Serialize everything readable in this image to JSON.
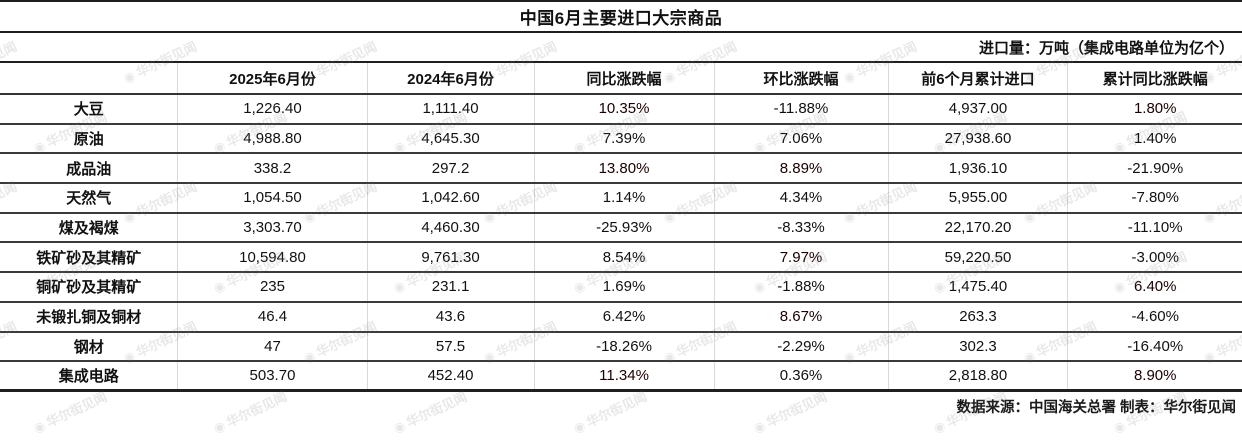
{
  "title": "中国6月主要进口大宗商品",
  "subtitle": "进口量：万吨（集成电路单位为亿个）",
  "footer": "数据来源：中国海关总署 制表：华尔街见闻",
  "watermark": "华尔街见闻",
  "colors": {
    "highlight_red": "#c60c11",
    "highlight_pink": "#f6ced3",
    "line_dark": "#1f1f1f"
  },
  "chart_data": {
    "type": "table",
    "title": "中国6月主要进口大宗商品",
    "unit_note": "进口量：万吨（集成电路单位为亿个）",
    "columns": [
      "",
      "2025年6月份",
      "2024年6月份",
      "同比涨跌幅",
      "环比涨跌幅",
      "前6个月累计进口",
      "累计同比涨跌幅"
    ],
    "rows": [
      [
        "大豆",
        "1,226.40",
        "1,111.40",
        "10.35%",
        "-11.88%",
        "4,937.00",
        "1.80%"
      ],
      [
        "原油",
        "4,988.80",
        "4,645.30",
        "7.39%",
        "7.06%",
        "27,938.60",
        "1.40%"
      ],
      [
        "成品油",
        "338.2",
        "297.2",
        "13.80%",
        "8.89%",
        "1,936.10",
        "-21.90%"
      ],
      [
        "天然气",
        "1,054.50",
        "1,042.60",
        "1.14%",
        "4.34%",
        "5,955.00",
        "-7.80%"
      ],
      [
        "煤及褐煤",
        "3,303.70",
        "4,460.30",
        "-25.93%",
        "-8.33%",
        "22,170.20",
        "-11.10%"
      ],
      [
        "铁矿砂及其精矿",
        "10,594.80",
        "9,761.30",
        "8.54%",
        "7.97%",
        "59,220.50",
        "-3.00%"
      ],
      [
        "铜矿砂及其精矿",
        "235",
        "231.1",
        "1.69%",
        "-1.88%",
        "1,475.40",
        "6.40%"
      ],
      [
        "未锻扎铜及铜材",
        "46.4",
        "43.6",
        "6.42%",
        "8.67%",
        "263.3",
        "-4.60%"
      ],
      [
        "钢材",
        "47",
        "57.5",
        "-18.26%",
        "-2.29%",
        "302.3",
        "-16.40%"
      ],
      [
        "集成电路",
        "503.70",
        "452.40",
        "11.34%",
        "0.36%",
        "2,818.80",
        "8.90%"
      ]
    ]
  },
  "table": {
    "columns": [
      "",
      "2025年6月份",
      "2024年6月份",
      "同比涨跌幅",
      "环比涨跌幅",
      "前6个月累计进口",
      "累计同比涨跌幅"
    ],
    "rows": [
      {
        "name": "大豆",
        "cells": [
          {
            "text": "1,226.40",
            "bg": "white"
          },
          {
            "text": "1,111.40",
            "bg": "white"
          },
          {
            "text": "10.35%",
            "bg": "red"
          },
          {
            "text": "-11.88%",
            "bg": "pink"
          },
          {
            "text": "4,937.00",
            "bg": "white"
          },
          {
            "text": "1.80%",
            "bg": "red"
          }
        ]
      },
      {
        "name": "原油",
        "cells": [
          {
            "text": "4,988.80",
            "bg": "white"
          },
          {
            "text": "4,645.30",
            "bg": "white"
          },
          {
            "text": "7.39%",
            "bg": "white"
          },
          {
            "text": "7.06%",
            "bg": "white"
          },
          {
            "text": "27,938.60",
            "bg": "white"
          },
          {
            "text": "1.40%",
            "bg": "white"
          }
        ]
      },
      {
        "name": "成品油",
        "cells": [
          {
            "text": "338.2",
            "bg": "white"
          },
          {
            "text": "297.2",
            "bg": "white"
          },
          {
            "text": "13.80%",
            "bg": "red"
          },
          {
            "text": "8.89%",
            "bg": "red"
          },
          {
            "text": "1,936.10",
            "bg": "white"
          },
          {
            "text": "-21.90%",
            "bg": "pink"
          }
        ]
      },
      {
        "name": "天然气",
        "cells": [
          {
            "text": "1,054.50",
            "bg": "white"
          },
          {
            "text": "1,042.60",
            "bg": "white"
          },
          {
            "text": "1.14%",
            "bg": "white"
          },
          {
            "text": "4.34%",
            "bg": "white"
          },
          {
            "text": "5,955.00",
            "bg": "white"
          },
          {
            "text": "-7.80%",
            "bg": "white"
          }
        ]
      },
      {
        "name": "煤及褐煤",
        "cells": [
          {
            "text": "3,303.70",
            "bg": "white"
          },
          {
            "text": "4,460.30",
            "bg": "white"
          },
          {
            "text": "-25.93%",
            "bg": "pink"
          },
          {
            "text": "-8.33%",
            "bg": "pink"
          },
          {
            "text": "22,170.20",
            "bg": "white"
          },
          {
            "text": "-11.10%",
            "bg": "pink"
          }
        ]
      },
      {
        "name": "铁矿砂及其精矿",
        "cells": [
          {
            "text": "10,594.80",
            "bg": "white"
          },
          {
            "text": "9,761.30",
            "bg": "white"
          },
          {
            "text": "8.54%",
            "bg": "white"
          },
          {
            "text": "7.97%",
            "bg": "red"
          },
          {
            "text": "59,220.50",
            "bg": "white"
          },
          {
            "text": "-3.00%",
            "bg": "white"
          }
        ]
      },
      {
        "name": "铜矿砂及其精矿",
        "cells": [
          {
            "text": "235",
            "bg": "white"
          },
          {
            "text": "231.1",
            "bg": "white"
          },
          {
            "text": "1.69%",
            "bg": "pink"
          },
          {
            "text": "-1.88%",
            "bg": "white"
          },
          {
            "text": "1,475.40",
            "bg": "white"
          },
          {
            "text": "6.40%",
            "bg": "red"
          }
        ]
      },
      {
        "name": "未锻扎铜及铜材",
        "cells": [
          {
            "text": "46.4",
            "bg": "white"
          },
          {
            "text": "43.6",
            "bg": "white"
          },
          {
            "text": "6.42%",
            "bg": "white"
          },
          {
            "text": "8.67%",
            "bg": "red"
          },
          {
            "text": "263.3",
            "bg": "white"
          },
          {
            "text": "-4.60%",
            "bg": "white"
          }
        ]
      },
      {
        "name": "钢材",
        "cells": [
          {
            "text": "47",
            "bg": "white"
          },
          {
            "text": "57.5",
            "bg": "white"
          },
          {
            "text": "-18.26%",
            "bg": "pink"
          },
          {
            "text": "-2.29%",
            "bg": "pink"
          },
          {
            "text": "302.3",
            "bg": "white"
          },
          {
            "text": "-16.40%",
            "bg": "pink"
          }
        ]
      },
      {
        "name": "集成电路",
        "cells": [
          {
            "text": "503.70",
            "bg": "white"
          },
          {
            "text": "452.40",
            "bg": "white"
          },
          {
            "text": "11.34%",
            "bg": "red"
          },
          {
            "text": "0.36%",
            "bg": "white"
          },
          {
            "text": "2,818.80",
            "bg": "white"
          },
          {
            "text": "8.90%",
            "bg": "red"
          }
        ]
      }
    ]
  }
}
